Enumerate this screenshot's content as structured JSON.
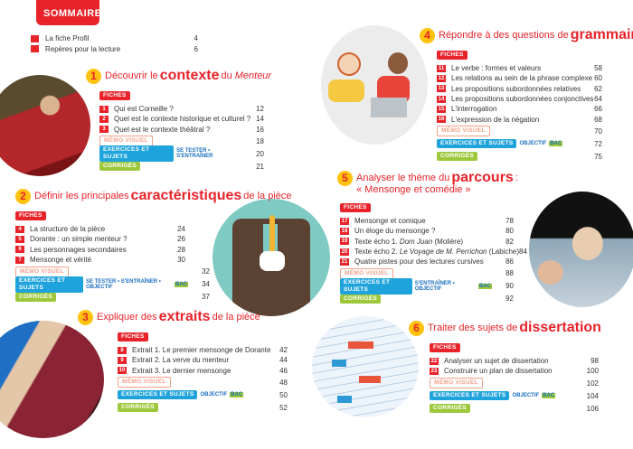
{
  "header": {
    "title": "SOMMAIRE"
  },
  "intro": [
    {
      "text": "La fiche Profil",
      "page": "4"
    },
    {
      "text": "Repères pour la lecture",
      "page": "6"
    }
  ],
  "labels": {
    "fiches": "FICHES",
    "memo": "MÉMO VISUEL",
    "exercices": "EXERCICES ET SUJETS",
    "corriges": "CORRIGÉS",
    "bac": "BAC"
  },
  "colors": {
    "red": "#e8232a",
    "yellow": "#ffc20e",
    "blue": "#1ea3dc",
    "green": "#9dc83b"
  },
  "sections": [
    {
      "num": "1",
      "title": {
        "pre": "Découvrir le",
        "strong": "contexte",
        "post": "du",
        "em": "Menteur"
      },
      "items": [
        {
          "n": "1",
          "text": "Qui est Corneille ?",
          "page": "12"
        },
        {
          "n": "2",
          "text": "Quel est le contexte historique et culturel ?",
          "page": "14"
        },
        {
          "n": "3",
          "text": "Quel est le contexte théâtral ?",
          "page": "16"
        }
      ],
      "memo_page": "18",
      "exercices_tags": "SE TESTER • S'ENTRAÎNER",
      "exercices_bac": "",
      "exercices_page": "20",
      "corriges_page": "21"
    },
    {
      "num": "2",
      "title": {
        "pre": "Définir les principales",
        "strong": "caractéristiques",
        "post": "de la pièce"
      },
      "items": [
        {
          "n": "4",
          "text": "La structure de la pièce",
          "page": "24"
        },
        {
          "n": "5",
          "text": "Dorante : un simple menteur ?",
          "page": "26"
        },
        {
          "n": "6",
          "text": "Les personnages secondaires",
          "page": "28"
        },
        {
          "n": "7",
          "text": "Mensonge et vérité",
          "page": "30"
        }
      ],
      "memo_page": "32",
      "exercices_tags": "SE TESTER • S'ENTRAÎNER • OBJECTIF",
      "exercices_bac": "BAC",
      "exercices_page": "34",
      "corriges_page": "37"
    },
    {
      "num": "3",
      "title": {
        "pre": "Expliquer des",
        "strong": "extraits",
        "post": "de la pièce"
      },
      "items": [
        {
          "n": "8",
          "text": "Extrait 1. Le premier mensonge de Dorante",
          "page": "42"
        },
        {
          "n": "9",
          "text": "Extrait 2. La verve du menteur",
          "page": "44"
        },
        {
          "n": "10",
          "text": "Extrait 3. Le dernier mensonge",
          "page": "46"
        }
      ],
      "memo_page": "48",
      "exercices_tags": "OBJECTIF",
      "exercices_bac": "BAC",
      "exercices_page": "50",
      "corriges_page": "52"
    },
    {
      "num": "4",
      "title": {
        "pre": "Répondre à des questions de",
        "strong": "grammaire",
        "post": ""
      },
      "items": [
        {
          "n": "11",
          "text": "Le verbe : formes et valeurs",
          "page": "58"
        },
        {
          "n": "12",
          "text": "Les relations au sein de la phrase complexe",
          "page": "60"
        },
        {
          "n": "13",
          "text": "Les propositions subordonnées relatives",
          "page": "62"
        },
        {
          "n": "14",
          "text": "Les propositions subordonnées conjonctives",
          "page": "64"
        },
        {
          "n": "15",
          "text": "L'interrogation",
          "page": "66"
        },
        {
          "n": "16",
          "text": "L'expression de la négation",
          "page": "68"
        }
      ],
      "memo_page": "70",
      "exercices_tags": "OBJECTIF",
      "exercices_bac": "BAC",
      "exercices_page": "72",
      "corriges_page": "75"
    },
    {
      "num": "5",
      "title": {
        "pre": "Analyser le thème du",
        "strong": "parcours",
        "post": ":"
      },
      "subtitle": "« Mensonge et comédie »",
      "items": [
        {
          "n": "17",
          "text": "Mensonge et comique",
          "page": "78"
        },
        {
          "n": "18",
          "text": "Un éloge du mensonge ?",
          "page": "80"
        },
        {
          "n": "19",
          "pre": "Texte écho 1. ",
          "em": "Dom Juan",
          "post": " (Molière)",
          "page": "82"
        },
        {
          "n": "20",
          "pre": "Texte écho 2. ",
          "em": "Le Voyage de M. Perrichon",
          "post": " (Labiche)",
          "page": "84"
        },
        {
          "n": "21",
          "text": "Quatre pistes pour des lectures cursives",
          "page": "86"
        }
      ],
      "memo_page": "88",
      "exercices_tags": "S'ENTRAÎNER • OBJECTIF",
      "exercices_bac": "BAC",
      "exercices_page": "90",
      "corriges_page": "92"
    },
    {
      "num": "6",
      "title": {
        "pre": "Traiter des sujets de",
        "strong": "dissertation",
        "post": ""
      },
      "items": [
        {
          "n": "22",
          "text": "Analyser un sujet de dissertation",
          "page": "98"
        },
        {
          "n": "23",
          "text": "Construire un plan de dissertation",
          "page": "100"
        }
      ],
      "memo_page": "102",
      "exercices_tags": "OBJECTIF",
      "exercices_bac": "BAC",
      "exercices_page": "104",
      "corriges_page": "106"
    }
  ]
}
